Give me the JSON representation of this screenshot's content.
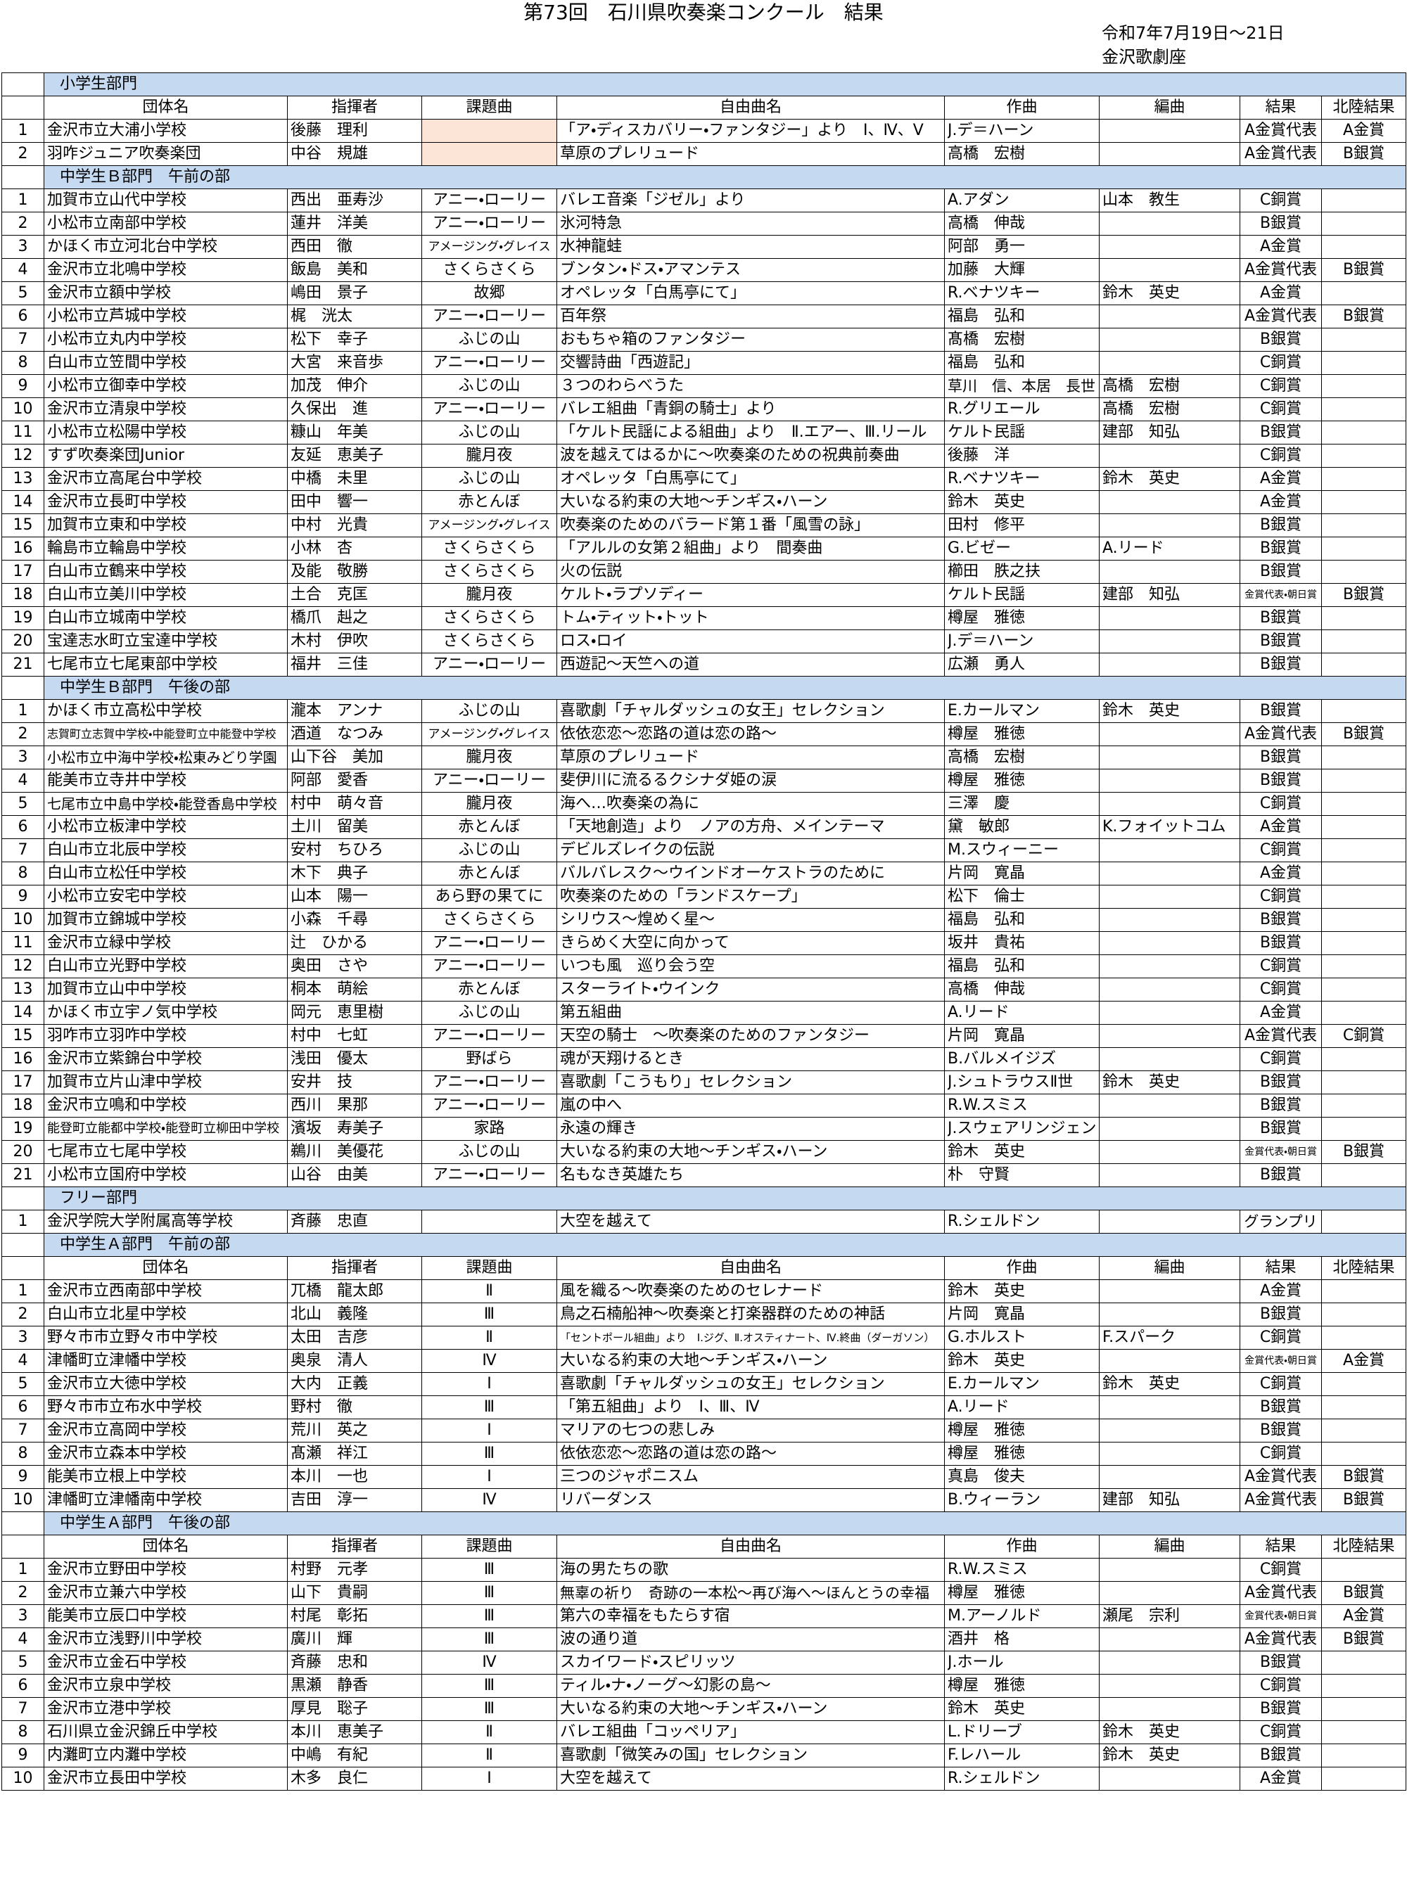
{
  "title": "第73回　石川県吹奏楽コンクール　結果",
  "date": "令和7年7月19日～21日",
  "venue": "金沢歌劇座",
  "sections": [
    {
      "name": "小学生部門",
      "header": [
        "団体名",
        "指揮者",
        "課題曲",
        "自由曲名",
        "作曲",
        "編曲",
        "結果",
        "北陸結果"
      ],
      "rows": [
        [
          1,
          "金沢市立大浦小学校",
          "後藤　理利",
          null,
          "「ア・ディスカバリー・ファンタジー」より　Ⅰ、Ⅳ、Ⅴ",
          "J.デ＝ハーン",
          null,
          "A金賞代表",
          "A金賞"
        ],
        [
          2,
          "羽咋ジュニア吹奏楽団",
          "中谷　規雄",
          null,
          "草原のプレリュード",
          "高橋　宏樹",
          null,
          "A金賞代表",
          "B銀賞"
        ]
      ]
    },
    {
      "name": "中学生Ｂ部門　午前の部",
      "rows": [
        [
          1,
          "加賀市立山代中学校",
          "西出　亜寿沙",
          "アニー・ローリー",
          "バレエ音楽「ジゼル」より",
          "A.アダン",
          "山本　教生",
          "C銅賞",
          null
        ],
        [
          2,
          "小松市立南部中学校",
          "蓮井　洋美",
          "アニー・ローリー",
          "氷河特急",
          "高橋　伸哉",
          null,
          "B銀賞",
          null
        ],
        [
          3,
          "かほく市立河北台中学校",
          "西田　徹",
          "アメージング・グレイス",
          "水神龍蛙",
          "阿部　勇一",
          null,
          "A金賞",
          null
        ],
        [
          4,
          "金沢市立北鳴中学校",
          "飯島　美和",
          "さくらさくら",
          "ブンタン・ドス・アマンテス",
          "加藤　大輝",
          null,
          "A金賞代表",
          "B銀賞"
        ],
        [
          5,
          "金沢市立額中学校",
          "嶋田　景子",
          "故郷",
          "オペレッタ「白馬亭にて」",
          "R.ベナツキー",
          "鈴木　英史",
          "A金賞",
          null
        ],
        [
          6,
          "小松市立芦城中学校",
          "梶　洸太",
          "アニー・ローリー",
          "百年祭",
          "福島　弘和",
          null,
          "A金賞代表",
          "B銀賞"
        ],
        [
          7,
          "小松市立丸内中学校",
          "松下　幸子",
          "ふじの山",
          "おもちゃ箱のファンタジー",
          "髙橋　宏樹",
          null,
          "B銀賞",
          null
        ],
        [
          8,
          "白山市立笠間中学校",
          "大宮　来音歩",
          "アニー・ローリー",
          "交響詩曲「西遊記」",
          "福島　弘和",
          null,
          "C銅賞",
          null
        ],
        [
          9,
          "小松市立御幸中学校",
          "加茂　伸介",
          "ふじの山",
          "３つのわらべうた",
          "草川　信、本居　長世",
          "高橋　宏樹",
          "C銅賞",
          null
        ],
        [
          10,
          "金沢市立清泉中学校",
          "久保出　進",
          "アニー・ローリー",
          "バレエ組曲「青銅の騎士」より",
          "R.グリエール",
          "高橋　宏樹",
          "C銅賞",
          null
        ],
        [
          11,
          "小松市立松陽中学校",
          "糠山　年美",
          "ふじの山",
          "「ケルト民謡による組曲」より　Ⅱ.エアー、Ⅲ.リール",
          "ケルト民謡",
          "建部　知弘",
          "B銀賞",
          null
        ],
        [
          12,
          "すず吹奏楽団Junior",
          "友延　恵美子",
          "朧月夜",
          "波を越えてはるかに～吹奏楽のための祝典前奏曲",
          "後藤　洋",
          null,
          "C銅賞",
          null
        ],
        [
          13,
          "金沢市立高尾台中学校",
          "中橋　未里",
          "ふじの山",
          "オペレッタ「白馬亭にて」",
          "R.ベナツキー",
          "鈴木　英史",
          "A金賞",
          null
        ],
        [
          14,
          "金沢市立長町中学校",
          "田中　響一",
          "赤とんぼ",
          "大いなる約束の大地～チンギス・ハーン",
          "鈴木　英史",
          null,
          "A金賞",
          null
        ],
        [
          15,
          "加賀市立東和中学校",
          "中村　光貴",
          "アメージング・グレイス",
          "吹奏楽のためのバラード第１番「風雪の詠」",
          "田村　修平",
          null,
          "B銀賞",
          null
        ],
        [
          16,
          "輪島市立輪島中学校",
          "小林　杏",
          "さくらさくら",
          "「アルルの女第２組曲」より　間奏曲",
          "G.ビゼー",
          "A.リード",
          "B銀賞",
          null
        ],
        [
          17,
          "白山市立鶴来中学校",
          "及能　敬勝",
          "さくらさくら",
          "火の伝説",
          "櫛田　胅之扶",
          null,
          "B銀賞",
          null
        ],
        [
          18,
          "白山市立美川中学校",
          "土合　克匡",
          "朧月夜",
          "ケルト・ラプソディー",
          "ケルト民謡",
          "建部　知弘",
          "金賞代表・朝日賞",
          "B銀賞"
        ],
        [
          19,
          "白山市立城南中学校",
          "橋爪　赳之",
          "さくらさくら",
          "トム・ティット・トット",
          "樽屋　雅徳",
          null,
          "B銀賞",
          null
        ],
        [
          20,
          "宝達志水町立宝達中学校",
          "木村　伊吹",
          "さくらさくら",
          "ロス・ロイ",
          "J.デ＝ハーン",
          null,
          "B銀賞",
          null
        ],
        [
          21,
          "七尾市立七尾東部中学校",
          "福井　三佳",
          "アニー・ローリー",
          "西遊記～天竺への道",
          "広瀬　勇人",
          null,
          "B銀賞",
          null
        ]
      ]
    },
    {
      "name": "中学生Ｂ部門　午後の部",
      "rows": [
        [
          1,
          "かほく市立高松中学校",
          "瀧本　アンナ",
          "ふじの山",
          "喜歌劇「チャルダッシュの女王」セレクション",
          "E.カールマン",
          "鈴木　英史",
          "B銀賞",
          null
        ],
        [
          2,
          "志賀町立志賀中学校・中能登町立中能登中学校",
          "酒道　なつみ",
          "アメージング・グレイス",
          "依依恋恋～恋路の道は恋の路～",
          "樽屋　雅徳",
          null,
          "A金賞代表",
          "B銀賞"
        ],
        [
          3,
          "小松市立中海中学校・松東みどり学園",
          "山下谷　美加",
          "朧月夜",
          "草原のプレリュード",
          "高橋　宏樹",
          null,
          "B銀賞",
          null
        ],
        [
          4,
          "能美市立寺井中学校",
          "阿部　愛香",
          "アニー・ローリー",
          "斐伊川に流るるクシナダ姫の涙",
          "樽屋　雅徳",
          null,
          "B銀賞",
          null
        ],
        [
          5,
          "七尾市立中島中学校・能登香島中学校",
          "村中　萌々音",
          "朧月夜",
          "海へ…吹奏楽の為に",
          "三澤　慶",
          null,
          "C銅賞",
          null
        ],
        [
          6,
          "小松市立板津中学校",
          "土川　留美",
          "赤とんぼ",
          "「天地創造」より　ノアの方舟、メインテーマ",
          "黛　敏郎",
          "K.フォイットコム",
          "A金賞",
          null
        ],
        [
          7,
          "白山市立北辰中学校",
          "安村　ちひろ",
          "ふじの山",
          "デビルズレイクの伝説",
          "M.スウィーニー",
          null,
          "C銅賞",
          null
        ],
        [
          8,
          "白山市立松任中学校",
          "木下　典子",
          "赤とんぼ",
          "バルバレスク～ウインドオーケストラのために",
          "片岡　寛晶",
          null,
          "A金賞",
          null
        ],
        [
          9,
          "小松市立安宅中学校",
          "山本　陽一",
          "あら野の果てに",
          "吹奏楽のための「ランドスケープ」",
          "松下　倫士",
          null,
          "C銅賞",
          null
        ],
        [
          10,
          "加賀市立錦城中学校",
          "小森　千尋",
          "さくらさくら",
          "シリウス～煌めく星～",
          "福島　弘和",
          null,
          "B銀賞",
          null
        ],
        [
          11,
          "金沢市立緑中学校",
          "辻　ひかる",
          "アニー・ローリー",
          "きらめく大空に向かって",
          "坂井　貴祐",
          null,
          "B銀賞",
          null
        ],
        [
          12,
          "白山市立光野中学校",
          "奥田　さや",
          "アニー・ローリー",
          "いつも風　巡り会う空",
          "福島　弘和",
          null,
          "C銅賞",
          null
        ],
        [
          13,
          "加賀市立山中中学校",
          "桐本　萌絵",
          "赤とんぼ",
          "スターライト・ウインク",
          "高橋　伸哉",
          null,
          "C銅賞",
          null
        ],
        [
          14,
          "かほく市立宇ノ気中学校",
          "岡元　恵里樹",
          "ふじの山",
          "第五組曲",
          "A.リード",
          null,
          "A金賞",
          null
        ],
        [
          15,
          "羽咋市立羽咋中学校",
          "村中　七虹",
          "アニー・ローリー",
          "天空の騎士　～吹奏楽のためのファンタジー",
          "片岡　寛晶",
          null,
          "A金賞代表",
          "C銅賞"
        ],
        [
          16,
          "金沢市立紫錦台中学校",
          "浅田　優太",
          "野ばら",
          "魂が天翔けるとき",
          "B.バルメイジズ",
          null,
          "C銅賞",
          null
        ],
        [
          17,
          "加賀市立片山津中学校",
          "安井　技",
          "アニー・ローリー",
          "喜歌劇「こうもり」セレクション",
          "J.シュトラウスⅡ世",
          "鈴木　英史",
          "B銀賞",
          null
        ],
        [
          18,
          "金沢市立鳴和中学校",
          "西川　果那",
          "アニー・ローリー",
          "嵐の中へ",
          "R.W.スミス",
          null,
          "B銀賞",
          null
        ],
        [
          19,
          "能登町立能都中学校・能登町立柳田中学校",
          "濱坂　寿美子",
          "家路",
          "永遠の輝き",
          "J.スウェアリンジェン",
          null,
          "B銀賞",
          null
        ],
        [
          20,
          "七尾市立七尾中学校",
          "鵜川　美優花",
          "ふじの山",
          "大いなる約束の大地～チンギス・ハーン",
          "鈴木　英史",
          null,
          "金賞代表・朝日賞",
          "B銀賞"
        ],
        [
          21,
          "小松市立国府中学校",
          "山谷　由美",
          "アニー・ローリー",
          "名もなき英雄たち",
          "朴　守賢",
          null,
          "B銀賞",
          null
        ]
      ]
    },
    {
      "name": "フリー部門",
      "rows": [
        [
          1,
          "金沢学院大学附属高等学校",
          "斉藤　忠直",
          null,
          "大空を越えて",
          "R.シェルドン",
          null,
          "グランプリ",
          null
        ]
      ]
    },
    {
      "name": "中学生Ａ部門　午前の部",
      "header": [
        "団体名",
        "指揮者",
        "課題曲",
        "自由曲名",
        "作曲",
        "編曲",
        "結果",
        "北陸結果"
      ],
      "rows": [
        [
          1,
          "金沢市立西南部中学校",
          "兀橋　龍太郎",
          "Ⅱ",
          "風を織る～吹奏楽のためのセレナード",
          "鈴木　英史",
          null,
          "A金賞",
          null
        ],
        [
          2,
          "白山市立北星中学校",
          "北山　義隆",
          "Ⅲ",
          "鳥之石楠船神～吹奏楽と打楽器群のための神話",
          "片岡　寛晶",
          null,
          "B銀賞",
          null
        ],
        [
          3,
          "野々市市立野々市中学校",
          "太田　吉彦",
          "Ⅱ",
          "「セントポール組曲」より　Ⅰ.ジグ、Ⅱ.オスティナート、Ⅳ.終曲（ダーガソン）",
          "G.ホルスト",
          "F.スパーク",
          "C銅賞",
          null
        ],
        [
          4,
          "津幡町立津幡中学校",
          "奥泉　清人",
          "Ⅳ",
          "大いなる約束の大地～チンギス・ハーン",
          "鈴木　英史",
          null,
          "金賞代表・朝日賞",
          "A金賞"
        ],
        [
          5,
          "金沢市立大徳中学校",
          "大内　正義",
          "Ⅰ",
          "喜歌劇「チャルダッシュの女王」セレクション",
          "E.カールマン",
          "鈴木　英史",
          "C銅賞",
          null
        ],
        [
          6,
          "野々市市立布水中学校",
          "野村　徹",
          "Ⅲ",
          "「第五組曲」より　Ⅰ、Ⅲ、Ⅳ",
          "A.リード",
          null,
          "B銀賞",
          null
        ],
        [
          7,
          "金沢市立高岡中学校",
          "荒川　英之",
          "Ⅰ",
          "マリアの七つの悲しみ",
          "樽屋　雅徳",
          null,
          "B銀賞",
          null
        ],
        [
          8,
          "金沢市立森本中学校",
          "髙瀬　祥江",
          "Ⅲ",
          "依依恋恋～恋路の道は恋の路～",
          "樽屋　雅徳",
          null,
          "C銅賞",
          null
        ],
        [
          9,
          "能美市立根上中学校",
          "本川　一也",
          "Ⅰ",
          "三つのジャポニスム",
          "真島　俊夫",
          null,
          "A金賞代表",
          "B銀賞"
        ],
        [
          10,
          "津幡町立津幡南中学校",
          "吉田　淳一",
          "Ⅳ",
          "リバーダンス",
          "B.ウィーラン",
          "建部　知弘",
          "A金賞代表",
          "B銀賞"
        ]
      ]
    },
    {
      "name": "中学生Ａ部門　午後の部",
      "header": [
        "団体名",
        "指揮者",
        "課題曲",
        "自由曲名",
        "作曲",
        "編曲",
        "結果",
        "北陸結果"
      ],
      "rows": [
        [
          1,
          "金沢市立野田中学校",
          "村野　元孝",
          "Ⅲ",
          "海の男たちの歌",
          "R.W.スミス",
          null,
          "C銅賞",
          null
        ],
        [
          2,
          "金沢市立兼六中学校",
          "山下　貴嗣",
          "Ⅲ",
          "無辜の祈り　奇跡の一本松～再び海へ～ほんとうの幸福",
          "樽屋　雅徳",
          null,
          "A金賞代表",
          "B銀賞"
        ],
        [
          3,
          "能美市立辰口中学校",
          "村尾　彰拓",
          "Ⅲ",
          "第六の幸福をもたらす宿",
          "M.アーノルド",
          "瀬尾　宗利",
          "金賞代表・朝日賞",
          "A金賞"
        ],
        [
          4,
          "金沢市立浅野川中学校",
          "廣川　輝",
          "Ⅲ",
          "波の通り道",
          "酒井　格",
          null,
          "A金賞代表",
          "B銀賞"
        ],
        [
          5,
          "金沢市立金石中学校",
          "斉藤　忠和",
          "Ⅳ",
          "スカイワード・スピリッツ",
          "J.ホール",
          null,
          "B銀賞",
          null
        ],
        [
          6,
          "金沢市立泉中学校",
          "黒瀬　静香",
          "Ⅲ",
          "ティル・ナ・ノーグ～幻影の島～",
          "樽屋　雅徳",
          null,
          "C銅賞",
          null
        ],
        [
          7,
          "金沢市立港中学校",
          "厚見　聡子",
          "Ⅲ",
          "大いなる約束の大地～チンギス・ハーン",
          "鈴木　英史",
          null,
          "B銀賞",
          null
        ],
        [
          8,
          "石川県立金沢錦丘中学校",
          "本川　恵美子",
          "Ⅱ",
          "バレエ組曲「コッペリア」",
          "L.ドリーブ",
          "鈴木　英史",
          "C銅賞",
          null
        ],
        [
          9,
          "内灘町立内灘中学校",
          "中嶋　有紀",
          "Ⅱ",
          "喜歌劇「微笑みの国」セレクション",
          "F.レハール",
          "鈴木　英史",
          "B銀賞",
          null
        ],
        [
          10,
          "金沢市立長田中学校",
          "木多　良仁",
          "Ⅰ",
          "大空を越えて",
          "R.シェルドン",
          null,
          "A金賞",
          null
        ]
      ]
    }
  ]
}
